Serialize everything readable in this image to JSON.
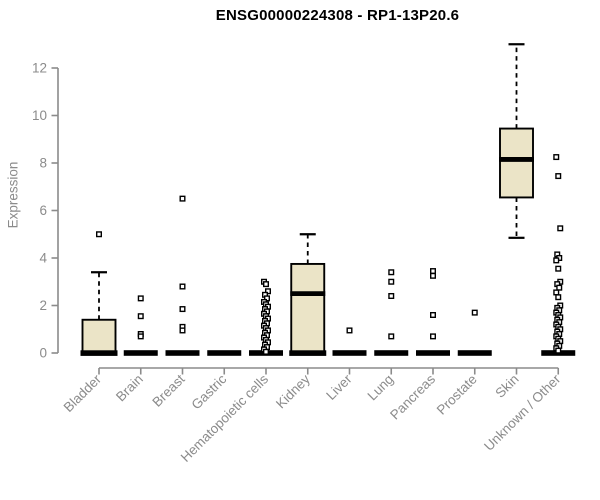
{
  "chart_data": {
    "type": "boxplot",
    "title": "ENSG00000224308 - RP1-13P20.6",
    "ylabel": "Expression",
    "xlabel": "",
    "ylim": [
      0,
      13.2
    ],
    "yticks": [
      0,
      2,
      4,
      6,
      8,
      10,
      12
    ],
    "grid": false,
    "legend": null,
    "categories": [
      "Bladder",
      "Brain",
      "Breast",
      "Gastric",
      "Hematopoietic cells",
      "Kidney",
      "Liver",
      "Lung",
      "Pancreas",
      "Prostate",
      "Skin",
      "Unknown / Other"
    ],
    "boxes": [
      {
        "category": "Bladder",
        "min": 0,
        "q1": 0,
        "median": 0,
        "q3": 1.4,
        "max": 3.4,
        "outliers": [
          5.0
        ]
      },
      {
        "category": "Brain",
        "min": 0,
        "q1": 0,
        "median": 0,
        "q3": 0,
        "max": 0,
        "outliers": [
          2.3,
          1.55,
          0.8,
          0.7
        ]
      },
      {
        "category": "Breast",
        "min": 0,
        "q1": 0,
        "median": 0,
        "q3": 0,
        "max": 0,
        "outliers": [
          6.5,
          2.8,
          1.85,
          1.1,
          0.95
        ]
      },
      {
        "category": "Gastric",
        "min": 0,
        "q1": 0,
        "median": 0,
        "q3": 0,
        "max": 0,
        "outliers": []
      },
      {
        "category": "Hematopoietic cells",
        "min": 0,
        "q1": 0,
        "median": 0,
        "q3": 0,
        "max": 0,
        "outliers": [
          3.0,
          2.9,
          2.6,
          2.45,
          2.3,
          2.15,
          2.05,
          1.95,
          1.85,
          1.75,
          1.65,
          1.55,
          1.45,
          1.35,
          1.25,
          1.15,
          1.05,
          0.95,
          0.85,
          0.75,
          0.65,
          0.55,
          0.45,
          0.35,
          0.25,
          0.15,
          0.05
        ]
      },
      {
        "category": "Kidney",
        "min": 0,
        "q1": 0,
        "median": 2.5,
        "q3": 3.75,
        "max": 5.0,
        "outliers": []
      },
      {
        "category": "Liver",
        "min": 0,
        "q1": 0,
        "median": 0,
        "q3": 0,
        "max": 0,
        "outliers": [
          0.95
        ]
      },
      {
        "category": "Lung",
        "min": 0,
        "q1": 0,
        "median": 0,
        "q3": 0,
        "max": 0,
        "outliers": [
          3.4,
          3.0,
          2.4,
          0.7
        ]
      },
      {
        "category": "Pancreas",
        "min": 0,
        "q1": 0,
        "median": 0,
        "q3": 0,
        "max": 0,
        "outliers": [
          3.45,
          3.25,
          1.6,
          0.7
        ]
      },
      {
        "category": "Prostate",
        "min": 0,
        "q1": 0,
        "median": 0,
        "q3": 0,
        "max": 0,
        "outliers": [
          1.7
        ]
      },
      {
        "category": "Skin",
        "min": 4.85,
        "q1": 6.55,
        "median": 8.15,
        "q3": 9.45,
        "max": 13.0,
        "outliers": []
      },
      {
        "category": "Unknown / Other",
        "min": 0,
        "q1": 0,
        "median": 0,
        "q3": 0,
        "max": 0,
        "outliers": [
          8.25,
          7.45,
          5.25,
          4.15,
          4.0,
          3.9,
          3.55,
          3.0,
          2.9,
          2.75,
          2.55,
          2.35,
          2.0,
          1.9,
          1.8,
          1.7,
          1.6,
          1.5,
          1.4,
          1.3,
          1.2,
          1.1,
          1.0,
          0.9,
          0.8,
          0.7,
          0.6,
          0.5,
          0.4,
          0.3,
          0.2,
          0.1
        ]
      }
    ],
    "colors": {
      "box_fill": "#EBE4C7",
      "box_border": "#000000",
      "median": "#000000",
      "outlier": "#000000",
      "axis": "#8B8B8B",
      "title": "#000000"
    }
  }
}
